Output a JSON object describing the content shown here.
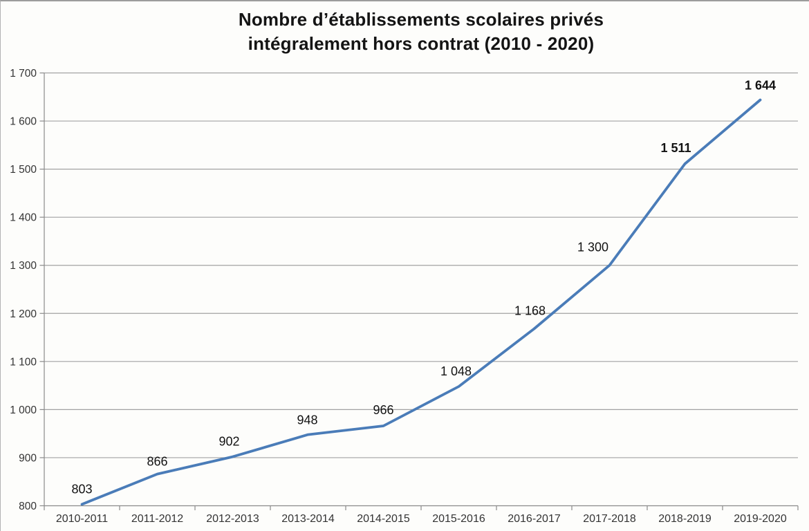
{
  "title": {
    "line1": "Nombre d’établissements scolaires privés",
    "line2": "intégralement hors contrat (2010 - 2020)"
  },
  "chart_data": {
    "type": "line",
    "title": "Nombre d’établissements scolaires privés intégralement hors contrat (2010 - 2020)",
    "categories": [
      "2010-2011",
      "2011-2012",
      "2012-2013",
      "2013-2014",
      "2014-2015",
      "2015-2016",
      "2016-2017",
      "2017-2018",
      "2018-2019",
      "2019-2020"
    ],
    "series": [
      {
        "name": "Nombre d’établissements scolaires privés intégralement hors contrat",
        "values": [
          803,
          866,
          902,
          948,
          966,
          1048,
          1168,
          1300,
          1511,
          1644
        ]
      }
    ],
    "value_labels": [
      "803",
      "866",
      "902",
      "948",
      "966",
      "1 048",
      "1 168",
      "1 300",
      "1 511",
      "1 644"
    ],
    "bold_value_labels": [
      false,
      false,
      false,
      false,
      false,
      false,
      false,
      false,
      true,
      true
    ],
    "xlabel": "",
    "ylabel": "",
    "ylim": [
      800,
      1700
    ],
    "ytick_step": 100,
    "ytick_labels": [
      "800",
      "900",
      "1 000",
      "1 100",
      "1 200",
      "1 300",
      "1 400",
      "1 500",
      "1 600",
      "1 700"
    ],
    "grid": "horizontal",
    "legend": "none",
    "colors": {
      "line": "#4a7cb8",
      "gridline": "#a2a2a2",
      "axis": "#8a8a8a",
      "tick_text": "#333333",
      "label_text": "#121212",
      "background": "#fdfdfb"
    }
  }
}
